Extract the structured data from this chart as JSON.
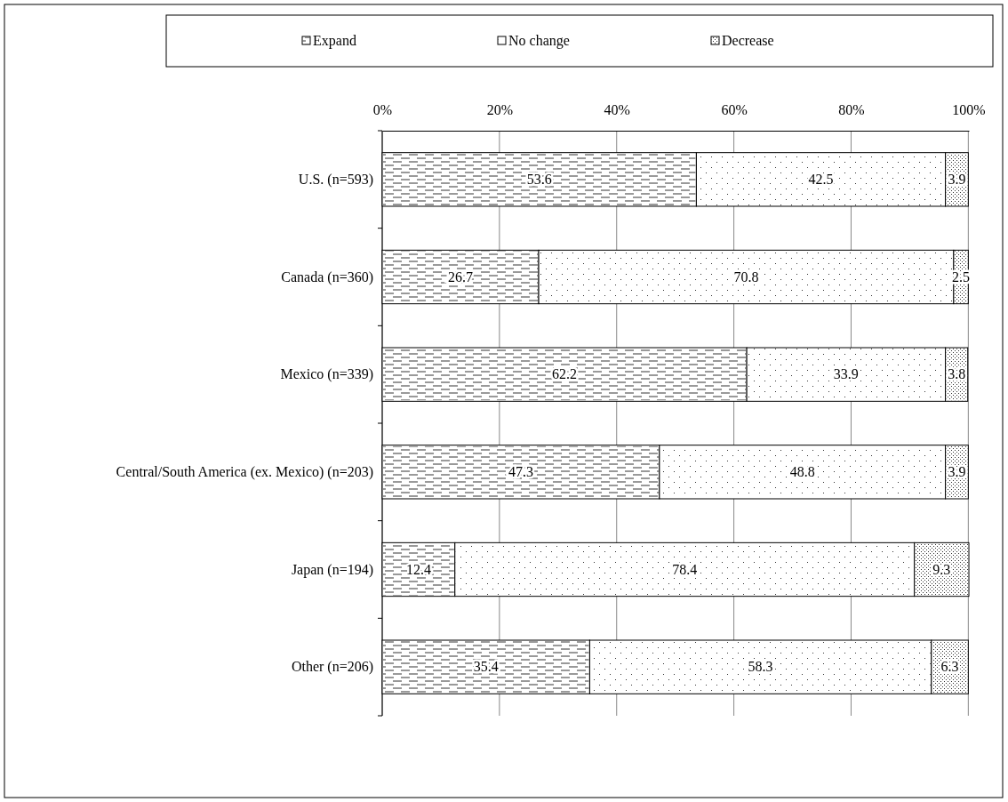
{
  "chart_data": {
    "type": "bar",
    "orientation": "horizontal",
    "stacked": true,
    "categories": [
      "U.S. (n=593)",
      "Canada (n=360)",
      "Mexico (n=339)",
      "Central/South America (ex. Mexico) (n=203)",
      "Japan (n=194)",
      "Other (n=206)"
    ],
    "series": [
      {
        "name": "Expand",
        "color": "#ffffff",
        "values": [
          53.6,
          26.7,
          62.2,
          47.3,
          12.4,
          35.4
        ]
      },
      {
        "name": "No change",
        "color": "#ffffff",
        "values": [
          42.5,
          70.8,
          33.9,
          48.8,
          78.4,
          58.3
        ]
      },
      {
        "name": "Decrease",
        "color": "#ffffff",
        "values": [
          3.9,
          2.5,
          3.8,
          3.9,
          9.3,
          6.3
        ]
      }
    ],
    "xlim": [
      0,
      100.1
    ],
    "xticks": [
      {
        "value": 0,
        "label": "0%"
      },
      {
        "value": 20,
        "label": "20%"
      },
      {
        "value": 40,
        "label": "40%"
      },
      {
        "value": 60,
        "label": "60%"
      },
      {
        "value": 80,
        "label": "80%"
      },
      {
        "value": 100,
        "label": "100%"
      }
    ],
    "grid": "x",
    "legend": "top",
    "data_labels": true
  }
}
